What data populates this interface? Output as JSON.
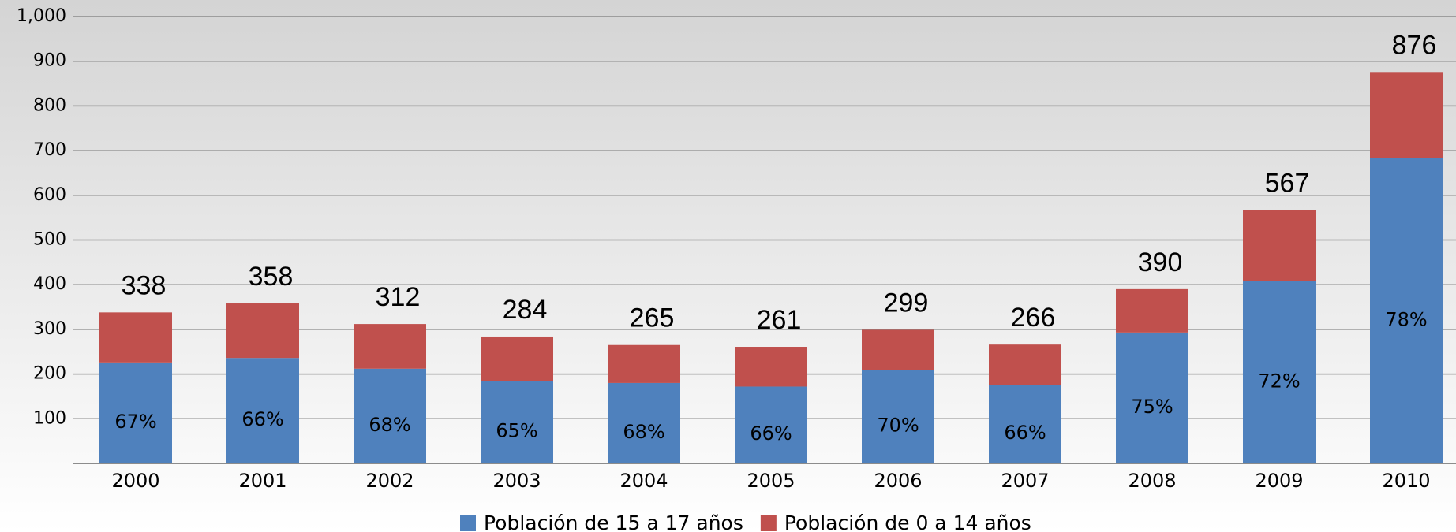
{
  "chart_data": {
    "type": "stacked_bar",
    "categories": [
      "2000",
      "2001",
      "2002",
      "2003",
      "2004",
      "2005",
      "2006",
      "2007",
      "2008",
      "2009",
      "2010"
    ],
    "series": [
      {
        "name": "Población de 15 a 17 años",
        "color": "#4f81bd",
        "values": [
          226,
          236,
          212,
          185,
          180,
          172,
          209,
          176,
          293,
          408,
          683
        ],
        "percent_labels": [
          "67%",
          "66%",
          "68%",
          "65%",
          "68%",
          "66%",
          "70%",
          "66%",
          "75%",
          "72%",
          "78%"
        ]
      },
      {
        "name": "Población de 0 a 14 años",
        "color": "#c0504d",
        "values": [
          112,
          122,
          100,
          99,
          85,
          89,
          90,
          90,
          97,
          159,
          193
        ]
      }
    ],
    "totals": [
      338,
      358,
      312,
      284,
      265,
      261,
      299,
      266,
      390,
      567,
      876
    ],
    "ylim": [
      0,
      1000
    ],
    "yticks": [
      100,
      200,
      300,
      400,
      500,
      600,
      700,
      800,
      900,
      {
        "value": 1000,
        "label": "1,000"
      }
    ],
    "grid": true,
    "legend": "bottom"
  }
}
